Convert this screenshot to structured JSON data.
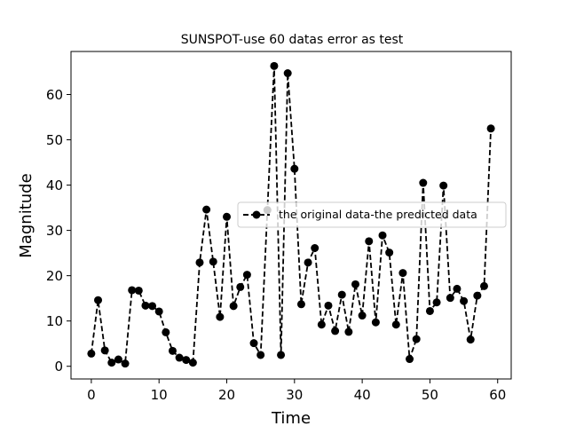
{
  "chart_data": {
    "type": "line",
    "title": "SUNSPOT-use 60 datas error as test",
    "xlabel": "Time",
    "ylabel": "Magnitude",
    "xlim": [
      -3,
      62
    ],
    "ylim": [
      -2.8,
      69.5
    ],
    "xticks": [
      0,
      10,
      20,
      30,
      40,
      50,
      60
    ],
    "yticks": [
      0,
      10,
      20,
      30,
      40,
      50,
      60
    ],
    "grid": false,
    "legend_position": "center-right",
    "series": [
      {
        "name": "the original data-the predicted data",
        "style": "dashed line with circle markers",
        "color": "#000000",
        "x": [
          0,
          1,
          2,
          3,
          4,
          5,
          6,
          7,
          8,
          9,
          10,
          11,
          12,
          13,
          14,
          15,
          16,
          17,
          18,
          19,
          20,
          21,
          22,
          23,
          24,
          25,
          26,
          27,
          28,
          29,
          30,
          31,
          32,
          33,
          34,
          35,
          36,
          37,
          38,
          39,
          40,
          41,
          42,
          43,
          44,
          45,
          46,
          47,
          48,
          49,
          50,
          51,
          52,
          53,
          54,
          55,
          56,
          57,
          58,
          59
        ],
        "values": [
          2.8,
          14.6,
          3.5,
          0.8,
          1.5,
          0.6,
          16.8,
          16.7,
          13.4,
          13.3,
          12.1,
          7.5,
          3.4,
          1.9,
          1.4,
          0.8,
          22.9,
          34.6,
          23.1,
          10.9,
          33.0,
          13.3,
          17.5,
          20.2,
          5.1,
          2.5,
          34.5,
          66.3,
          2.5,
          64.7,
          43.6,
          13.7,
          22.9,
          26.1,
          9.2,
          13.4,
          7.8,
          15.8,
          7.6,
          18.1,
          11.2,
          27.6,
          9.7,
          28.9,
          25.1,
          9.2,
          20.6,
          1.6,
          6.0,
          40.5,
          12.2,
          14.1,
          39.9,
          15.1,
          17.1,
          14.4,
          5.9,
          15.6,
          17.7,
          52.5
        ]
      }
    ]
  }
}
